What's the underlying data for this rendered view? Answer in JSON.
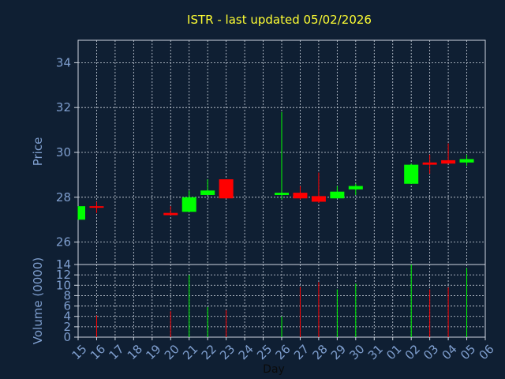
{
  "chart_data": {
    "type": "candlestick",
    "title": "ISTR - last updated 05/02/2026",
    "xlabel": "Day",
    "price_panel": {
      "ylabel": "Price",
      "ylim": [
        25,
        35
      ],
      "yticks": [
        26,
        28,
        30,
        32,
        34
      ],
      "grid": true
    },
    "volume_panel": {
      "ylabel": "Volume (0000)",
      "ylim": [
        0,
        14
      ],
      "yticks": [
        0,
        2,
        4,
        6,
        8,
        10,
        12,
        14
      ],
      "grid": true
    },
    "x_tick_labels": [
      "15",
      "16",
      "17",
      "18",
      "19",
      "20",
      "21",
      "22",
      "23",
      "24",
      "25",
      "26",
      "27",
      "28",
      "29",
      "30",
      "31",
      "01",
      "02",
      "03",
      "04",
      "05",
      "06"
    ],
    "up_color": "#00ff00",
    "down_color": "#ff0000",
    "candles": [
      {
        "day": "15",
        "open": 27.0,
        "high": 27.6,
        "low": 27.0,
        "close": 27.6,
        "volume": 0
      },
      {
        "day": "16",
        "open": 27.6,
        "high": 27.8,
        "low": 27.3,
        "close": 27.55,
        "volume": 4.2
      },
      {
        "day": "20",
        "open": 27.3,
        "high": 27.6,
        "low": 27.2,
        "close": 27.2,
        "volume": 5.0
      },
      {
        "day": "21",
        "open": 27.35,
        "high": 28.3,
        "low": 27.35,
        "close": 28.0,
        "volume": 12.0
      },
      {
        "day": "22",
        "open": 28.1,
        "high": 28.8,
        "low": 28.1,
        "close": 28.3,
        "volume": 5.8
      },
      {
        "day": "23",
        "open": 28.8,
        "high": 28.8,
        "low": 27.95,
        "close": 27.95,
        "volume": 5.2
      },
      {
        "day": "26",
        "open": 28.1,
        "high": 31.8,
        "low": 27.9,
        "close": 28.2,
        "volume": 4.0
      },
      {
        "day": "27",
        "open": 28.2,
        "high": 28.5,
        "low": 27.9,
        "close": 27.95,
        "volume": 9.7
      },
      {
        "day": "28",
        "open": 28.05,
        "high": 29.1,
        "low": 27.75,
        "close": 27.8,
        "volume": 10.6
      },
      {
        "day": "29",
        "open": 27.95,
        "high": 28.5,
        "low": 27.95,
        "close": 28.25,
        "volume": 9.2
      },
      {
        "day": "30",
        "open": 28.35,
        "high": 28.6,
        "low": 28.1,
        "close": 28.5,
        "volume": 10.3
      },
      {
        "day": "02",
        "open": 28.6,
        "high": 29.5,
        "low": 28.6,
        "close": 29.45,
        "volume": 14.0
      },
      {
        "day": "03",
        "open": 29.55,
        "high": 29.9,
        "low": 29.05,
        "close": 29.45,
        "volume": 9.2
      },
      {
        "day": "04",
        "open": 29.65,
        "high": 30.4,
        "low": 29.5,
        "close": 29.5,
        "volume": 9.6
      },
      {
        "day": "05",
        "open": 29.55,
        "high": 29.9,
        "low": 29.4,
        "close": 29.7,
        "volume": 13.3
      }
    ]
  }
}
